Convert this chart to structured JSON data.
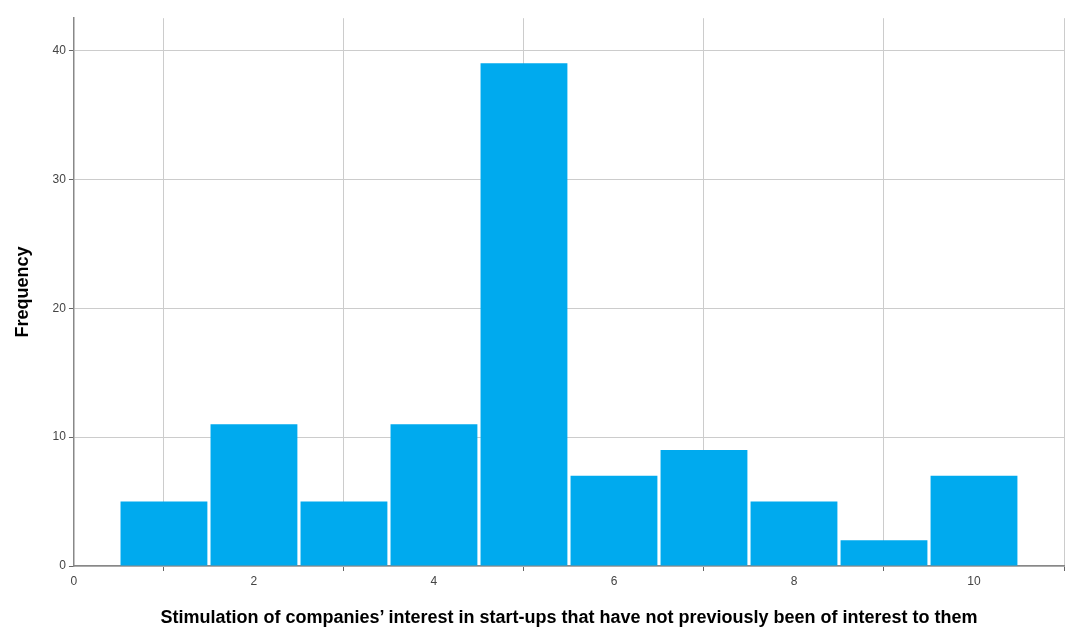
{
  "chart_data": {
    "type": "histogram",
    "xlabel": "Stimulation of companies’ interest in start-ups that have not previously been of interest to them",
    "ylabel": "Frequency",
    "bins": [
      0.5,
      1.5,
      2.5,
      3.5,
      4.5,
      5.5,
      6.5,
      7.5,
      8.5,
      9.5,
      10.5
    ],
    "values": [
      5,
      11,
      5,
      11,
      39,
      7,
      9,
      5,
      2,
      7
    ],
    "color": "#00aaee",
    "xlim": [
      0,
      11
    ],
    "xticks": [
      0,
      2,
      4,
      6,
      8,
      10
    ],
    "ylim": [
      0,
      42.5
    ],
    "yticks": [
      0,
      10,
      20,
      30,
      40
    ],
    "grid": true
  }
}
